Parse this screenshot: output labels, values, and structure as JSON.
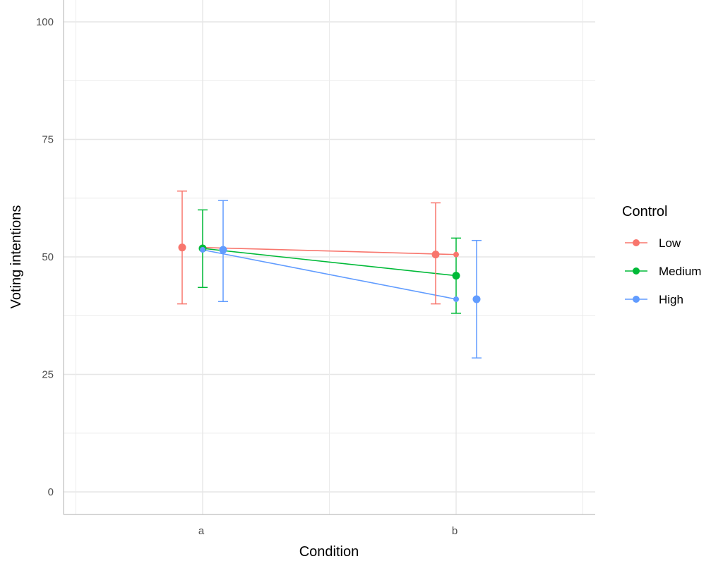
{
  "chart_data": {
    "type": "line",
    "title": "",
    "xlabel": "Condition",
    "ylabel": "Voting intentions",
    "categories": [
      "a",
      "b"
    ],
    "ylim": [
      -5,
      105
    ],
    "yticks": [
      0,
      25,
      50,
      75,
      100
    ],
    "grid": true,
    "legend": {
      "title": "Control",
      "position": "right"
    },
    "series": [
      {
        "name": "Low",
        "color": "#F8766D",
        "values": [
          52,
          50.5
        ],
        "summary_points": [
          {
            "category": "a",
            "value": 52,
            "lower": 40,
            "upper": 64
          },
          {
            "category": "b",
            "value": 50.5,
            "lower": 40,
            "upper": 61.5
          }
        ]
      },
      {
        "name": "Medium",
        "color": "#00BA38",
        "values": [
          51.8,
          46
        ],
        "summary_points": [
          {
            "category": "a",
            "value": 51.8,
            "lower": 43.5,
            "upper": 60
          },
          {
            "category": "b",
            "value": 46,
            "lower": 38,
            "upper": 54
          }
        ]
      },
      {
        "name": "High",
        "color": "#619CFF",
        "values": [
          51.5,
          41
        ],
        "summary_points": [
          {
            "category": "a",
            "value": 51.5,
            "lower": 40.5,
            "upper": 62
          },
          {
            "category": "b",
            "value": 41,
            "lower": 28.5,
            "upper": 53.5
          }
        ]
      }
    ]
  }
}
